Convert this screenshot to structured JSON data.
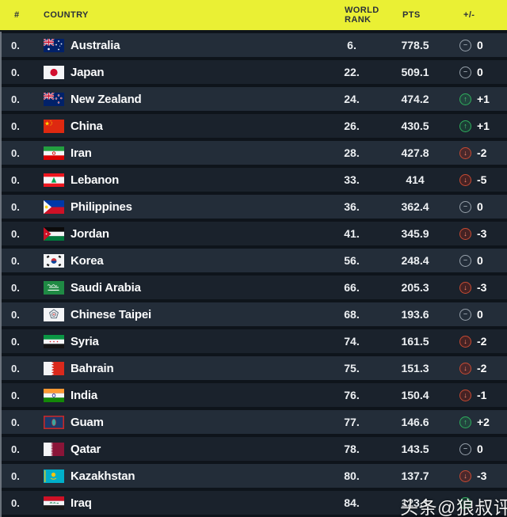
{
  "table": {
    "header": {
      "rank_col": "#",
      "country_col": "COUNTRY",
      "world_rank_col": "WORLD RANK",
      "pts_col": "PTS",
      "change_col": "+/-"
    },
    "rows": [
      {
        "num": "0.",
        "country": "Australia",
        "flag": "australia",
        "world_rank": "6.",
        "pts": "778.5",
        "change": "0",
        "trend": "same"
      },
      {
        "num": "0.",
        "country": "Japan",
        "flag": "japan",
        "world_rank": "22.",
        "pts": "509.1",
        "change": "0",
        "trend": "same"
      },
      {
        "num": "0.",
        "country": "New Zealand",
        "flag": "new-zealand",
        "world_rank": "24.",
        "pts": "474.2",
        "change": "+1",
        "trend": "up"
      },
      {
        "num": "0.",
        "country": "China",
        "flag": "china",
        "world_rank": "26.",
        "pts": "430.5",
        "change": "+1",
        "trend": "up"
      },
      {
        "num": "0.",
        "country": "Iran",
        "flag": "iran",
        "world_rank": "28.",
        "pts": "427.8",
        "change": "-2",
        "trend": "down"
      },
      {
        "num": "0.",
        "country": "Lebanon",
        "flag": "lebanon",
        "world_rank": "33.",
        "pts": "414",
        "change": "-5",
        "trend": "down"
      },
      {
        "num": "0.",
        "country": "Philippines",
        "flag": "philippines",
        "world_rank": "36.",
        "pts": "362.4",
        "change": "0",
        "trend": "same"
      },
      {
        "num": "0.",
        "country": "Jordan",
        "flag": "jordan",
        "world_rank": "41.",
        "pts": "345.9",
        "change": "-3",
        "trend": "down"
      },
      {
        "num": "0.",
        "country": "Korea",
        "flag": "korea",
        "world_rank": "56.",
        "pts": "248.4",
        "change": "0",
        "trend": "same"
      },
      {
        "num": "0.",
        "country": "Saudi Arabia",
        "flag": "saudi-arabia",
        "world_rank": "66.",
        "pts": "205.3",
        "change": "-3",
        "trend": "down"
      },
      {
        "num": "0.",
        "country": "Chinese Taipei",
        "flag": "chinese-taipei",
        "world_rank": "68.",
        "pts": "193.6",
        "change": "0",
        "trend": "same"
      },
      {
        "num": "0.",
        "country": "Syria",
        "flag": "syria",
        "world_rank": "74.",
        "pts": "161.5",
        "change": "-2",
        "trend": "down"
      },
      {
        "num": "0.",
        "country": "Bahrain",
        "flag": "bahrain",
        "world_rank": "75.",
        "pts": "151.3",
        "change": "-2",
        "trend": "down"
      },
      {
        "num": "0.",
        "country": "India",
        "flag": "india",
        "world_rank": "76.",
        "pts": "150.4",
        "change": "-1",
        "trend": "down"
      },
      {
        "num": "0.",
        "country": "Guam",
        "flag": "guam",
        "world_rank": "77.",
        "pts": "146.6",
        "change": "+2",
        "trend": "up"
      },
      {
        "num": "0.",
        "country": "Qatar",
        "flag": "qatar",
        "world_rank": "78.",
        "pts": "143.5",
        "change": "0",
        "trend": "same"
      },
      {
        "num": "0.",
        "country": "Kazakhstan",
        "flag": "kazakhstan",
        "world_rank": "80.",
        "pts": "137.7",
        "change": "-3",
        "trend": "down"
      },
      {
        "num": "0.",
        "country": "Iraq",
        "flag": "iraq",
        "world_rank": "84.",
        "pts": "123.1",
        "change": "",
        "trend": "up"
      }
    ]
  },
  "watermark": "头条@狼叔评论",
  "colors": {
    "header_bg": "#EAF034",
    "header_text": "#2A303A",
    "row_light": "#232D39",
    "row_dark": "#1A222C",
    "background": "#0E141B",
    "up": "#2FAE5D",
    "down": "#C64A33",
    "neutral": "#97A1AB"
  }
}
